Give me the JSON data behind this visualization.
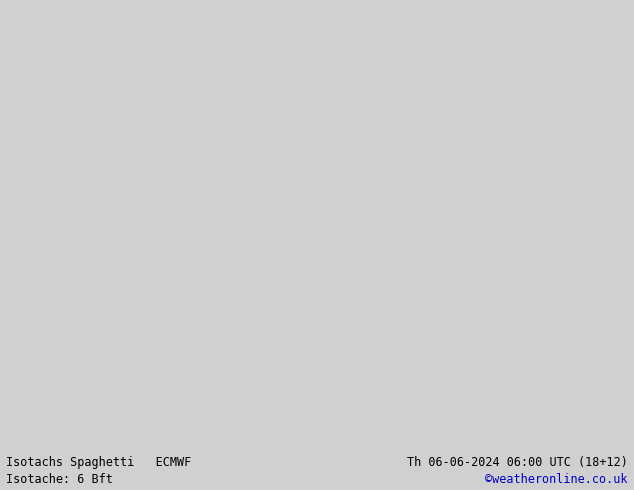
{
  "title_left": "Isotachs Spaghetti   ECMWF",
  "title_right": "Th 06-06-2024 06:00 UTC (18+12)",
  "subtitle_left": "Isotache: 6 Bft",
  "subtitle_right": "©weatheronline.co.uk",
  "subtitle_right_color": "#0000cc",
  "land_color": "#c8f0c8",
  "sea_color": "#c8c8c8",
  "border_color": "#888888",
  "footer_bg": "#d0d0d0",
  "text_color": "#000000",
  "fig_width": 6.34,
  "fig_height": 4.9,
  "map_extent": [
    -45,
    50,
    25,
    80
  ],
  "contour_colors": [
    "#ff0000",
    "#00cc00",
    "#0000ff",
    "#ff00ff",
    "#ff8800",
    "#00cccc",
    "#cccc00",
    "#884400",
    "#8800cc",
    "#ffff00",
    "#00ffcc",
    "#ff6666",
    "#6688ff",
    "#aaaaaa",
    "#444444",
    "#ff44aa",
    "#44ffaa",
    "#aaff44",
    "#4444ff",
    "#ff4444",
    "#88ff00",
    "#0088ff",
    "#ff0088",
    "#88ff88",
    "#ff8888"
  ],
  "n_members": 51,
  "font_family": "monospace"
}
